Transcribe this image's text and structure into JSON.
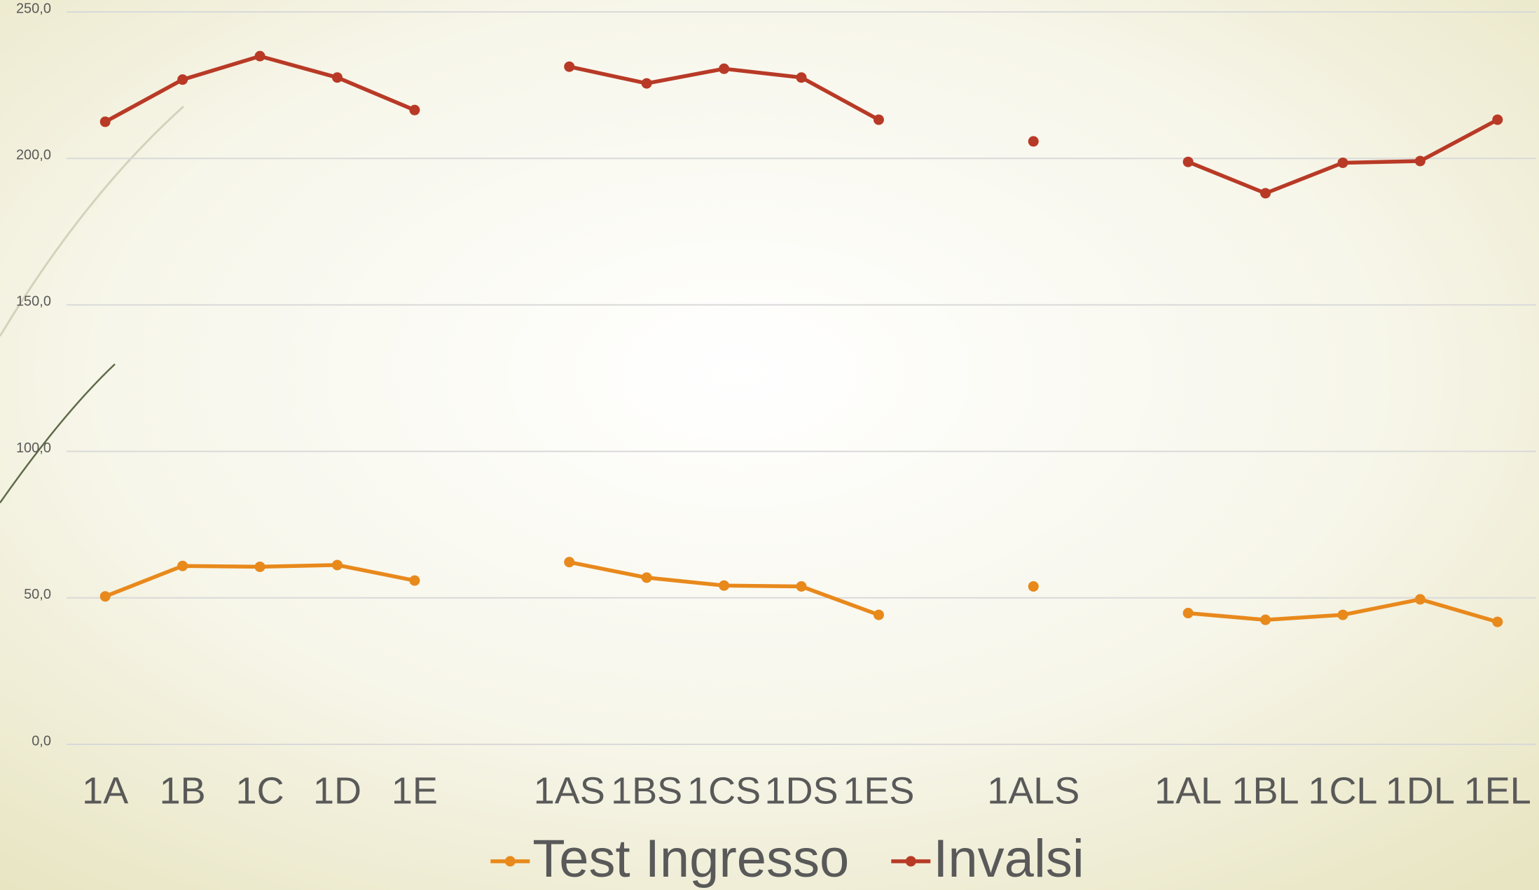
{
  "chart_data": {
    "type": "line",
    "categories": [
      "1A",
      "1B",
      "1C",
      "1D",
      "1E",
      null,
      "1AS",
      "1BS",
      "1CS",
      "1DS",
      "1ES",
      null,
      "1ALS",
      null,
      "1AL",
      "1BL",
      "1CL",
      "1DL",
      "1EL"
    ],
    "series": [
      {
        "name": "Test Ingresso",
        "color": "#e8891c",
        "values": [
          50.5,
          60.9,
          60.6,
          61.2,
          55.9,
          null,
          62.2,
          56.9,
          54.2,
          53.9,
          44.2,
          null,
          53.9,
          null,
          44.8,
          42.5,
          44.2,
          49.5,
          41.8
        ]
      },
      {
        "name": "Invalsi",
        "color": "#b83a26",
        "values": [
          212.5,
          226.9,
          234.9,
          227.6,
          216.5,
          null,
          231.3,
          225.6,
          230.6,
          227.6,
          213.2,
          null,
          205.8,
          null,
          198.8,
          188.1,
          198.5,
          199.1,
          213.2
        ]
      }
    ],
    "ylim": [
      0,
      250
    ],
    "yticks": [
      {
        "value": 0,
        "label": "0,0"
      },
      {
        "value": 50,
        "label": "50,0"
      },
      {
        "value": 100,
        "label": "100,0"
      },
      {
        "value": 150,
        "label": "150,0"
      },
      {
        "value": 200,
        "label": "200,0"
      },
      {
        "value": 250,
        "label": "250,0"
      }
    ],
    "grid": true,
    "legend": "bottom"
  }
}
